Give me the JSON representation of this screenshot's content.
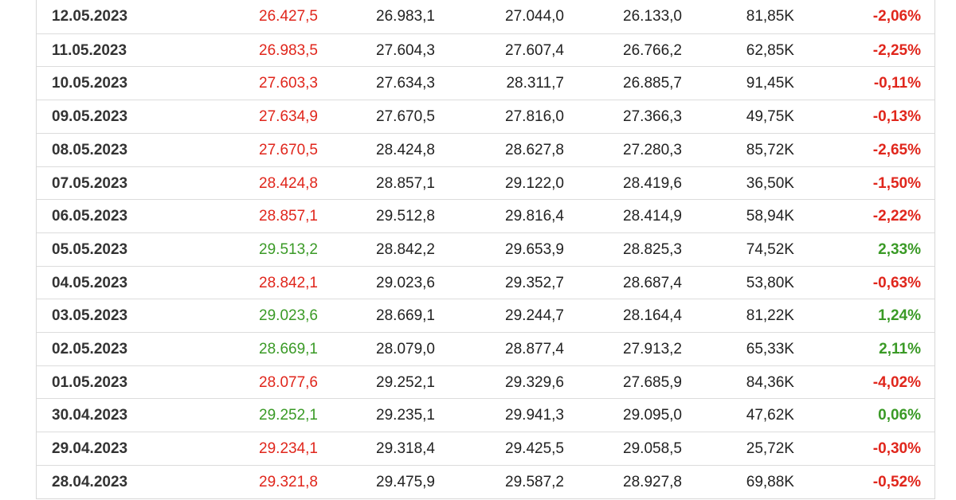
{
  "table": {
    "rows": [
      [
        "12.05.2023",
        "26.427,5",
        "26.983,1",
        "27.044,0",
        "26.133,0",
        "81,85K",
        "-2,06%"
      ],
      [
        "11.05.2023",
        "26.983,5",
        "27.604,3",
        "27.607,4",
        "26.766,2",
        "62,85K",
        "-2,25%"
      ],
      [
        "10.05.2023",
        "27.603,3",
        "27.634,3",
        "28.311,7",
        "26.885,7",
        "91,45K",
        "-0,11%"
      ],
      [
        "09.05.2023",
        "27.634,9",
        "27.670,5",
        "27.816,0",
        "27.366,3",
        "49,75K",
        "-0,13%"
      ],
      [
        "08.05.2023",
        "27.670,5",
        "28.424,8",
        "28.627,8",
        "27.280,3",
        "85,72K",
        "-2,65%"
      ],
      [
        "07.05.2023",
        "28.424,8",
        "28.857,1",
        "29.122,0",
        "28.419,6",
        "36,50K",
        "-1,50%"
      ],
      [
        "06.05.2023",
        "28.857,1",
        "29.512,8",
        "29.816,4",
        "28.414,9",
        "58,94K",
        "-2,22%"
      ],
      [
        "05.05.2023",
        "29.513,2",
        "28.842,2",
        "29.653,9",
        "28.825,3",
        "74,52K",
        "2,33%"
      ],
      [
        "04.05.2023",
        "28.842,1",
        "29.023,6",
        "29.352,7",
        "28.687,4",
        "53,80K",
        "-0,63%"
      ],
      [
        "03.05.2023",
        "29.023,6",
        "28.669,1",
        "29.244,7",
        "28.164,4",
        "81,22K",
        "1,24%"
      ],
      [
        "02.05.2023",
        "28.669,1",
        "28.079,0",
        "28.877,4",
        "27.913,2",
        "65,33K",
        "2,11%"
      ],
      [
        "01.05.2023",
        "28.077,6",
        "29.252,1",
        "29.329,6",
        "27.685,9",
        "84,36K",
        "-4,02%"
      ],
      [
        "30.04.2023",
        "29.252,1",
        "29.235,1",
        "29.941,3",
        "29.095,0",
        "47,62K",
        "0,06%"
      ],
      [
        "29.04.2023",
        "29.234,1",
        "29.318,4",
        "29.425,5",
        "29.058,5",
        "25,72K",
        "-0,30%"
      ],
      [
        "28.04.2023",
        "29.321,8",
        "29.475,9",
        "29.587,2",
        "28.927,8",
        "69,88K",
        "-0,52%"
      ]
    ]
  }
}
